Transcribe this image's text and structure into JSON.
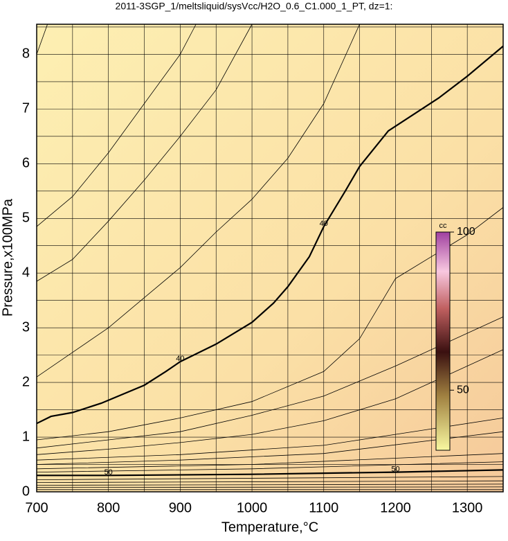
{
  "chart_data": {
    "type": "contour",
    "title": "2011-3SGP_1/meltsliquid/sysVcc/H2O_0.6_C1.000_1_PT, dz=1:",
    "x_label": "Temperature,°C",
    "y_label": "Pressure,x100MPa",
    "xlim": [
      700,
      1350
    ],
    "ylim": [
      0,
      8.55
    ],
    "xticks": [
      700,
      800,
      900,
      1000,
      1100,
      1200,
      1300
    ],
    "xminor": [
      750,
      850,
      950,
      1050,
      1150,
      1250,
      1350
    ],
    "yticks": [
      0,
      1,
      2,
      3,
      4,
      5,
      6,
      7,
      8
    ],
    "yminor": [
      0.5,
      1.5,
      2.5,
      3.5,
      4.5,
      5.5,
      6.5,
      7.5,
      8.5
    ],
    "grid": true,
    "contours": [
      {
        "level": 40,
        "x": [
          700,
          720,
          750,
          790,
          850,
          880,
          900,
          950,
          1000,
          1030,
          1050,
          1080,
          1100,
          1130,
          1150,
          1190,
          1260,
          1300,
          1350
        ],
        "y": [
          1.25,
          1.38,
          1.45,
          1.62,
          1.95,
          2.2,
          2.38,
          2.7,
          3.1,
          3.45,
          3.75,
          4.3,
          4.85,
          5.5,
          5.95,
          6.6,
          7.2,
          7.6,
          8.15
        ]
      },
      {
        "level": 50,
        "x": [
          700,
          800,
          1000,
          1200,
          1350
        ],
        "y": [
          0.3,
          0.3,
          0.32,
          0.36,
          0.4
        ]
      },
      {
        "x": [
          700,
          750,
          800,
          850,
          900,
          950,
          1000,
          1050,
          1100,
          1150
        ],
        "y": [
          2.1,
          2.55,
          3.0,
          3.55,
          4.1,
          4.75,
          5.35,
          6.1,
          7.1,
          8.55
        ]
      },
      {
        "x": [
          700,
          750,
          800,
          850,
          900,
          950,
          1000
        ],
        "y": [
          3.85,
          4.25,
          4.95,
          5.7,
          6.5,
          7.35,
          8.55
        ]
      },
      {
        "x": [
          700,
          750,
          800,
          850,
          900,
          922
        ],
        "y": [
          4.85,
          5.4,
          6.2,
          7.1,
          8.0,
          8.55
        ]
      },
      {
        "x": [
          700,
          715
        ],
        "y": [
          8.0,
          8.55
        ]
      },
      {
        "x": [
          700,
          800,
          900,
          1000,
          1100,
          1150,
          1200,
          1300,
          1350
        ],
        "y": [
          0.95,
          1.1,
          1.35,
          1.65,
          2.2,
          2.8,
          3.9,
          4.7,
          5.2
        ]
      },
      {
        "x": [
          700,
          800,
          900,
          1000,
          1100,
          1200,
          1350
        ],
        "y": [
          0.8,
          0.95,
          1.1,
          1.4,
          1.75,
          2.3,
          3.2
        ]
      },
      {
        "x": [
          700,
          800,
          900,
          1000,
          1100,
          1200,
          1350
        ],
        "y": [
          0.68,
          0.78,
          0.9,
          1.05,
          1.3,
          1.7,
          2.6
        ]
      },
      {
        "x": [
          700,
          900,
          1100,
          1350
        ],
        "y": [
          0.58,
          0.68,
          0.85,
          1.35
        ]
      },
      {
        "x": [
          700,
          900,
          1100,
          1350
        ],
        "y": [
          0.5,
          0.58,
          0.7,
          1.1
        ]
      },
      {
        "x": [
          700,
          1000,
          1350
        ],
        "y": [
          0.42,
          0.5,
          0.7
        ]
      },
      {
        "x": [
          700,
          1000,
          1350
        ],
        "y": [
          0.36,
          0.42,
          0.55
        ]
      },
      {
        "x": [
          700,
          1350
        ],
        "y": [
          0.22,
          0.28
        ]
      },
      {
        "x": [
          700,
          1350
        ],
        "y": [
          0.17,
          0.2
        ]
      },
      {
        "x": [
          700,
          1350
        ],
        "y": [
          0.12,
          0.14
        ]
      },
      {
        "x": [
          700,
          1350
        ],
        "y": [
          0.08,
          0.09
        ]
      },
      {
        "x": [
          700,
          1350
        ],
        "y": [
          0.04,
          0.04
        ]
      }
    ],
    "colorbar": {
      "label": "cc",
      "lim": [
        31,
        100
      ],
      "ticks": [
        50,
        100
      ]
    }
  }
}
